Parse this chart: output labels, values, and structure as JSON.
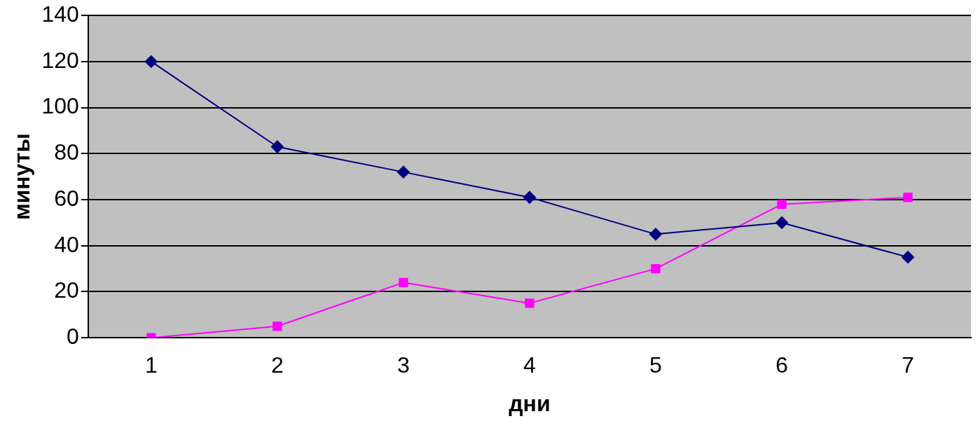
{
  "chart_data": {
    "type": "line",
    "xlabel": "дни",
    "ylabel": "минуты",
    "categories": [
      "1",
      "2",
      "3",
      "4",
      "5",
      "6",
      "7"
    ],
    "series": [
      {
        "color": "#000080",
        "marker": "diamond",
        "values": [
          120,
          83,
          72,
          61,
          45,
          50,
          35
        ]
      },
      {
        "color": "#ff00ff",
        "marker": "square",
        "values": [
          0,
          5,
          24,
          15,
          30,
          58,
          61
        ]
      }
    ],
    "ylim": [
      0,
      140
    ],
    "yticks": [
      0,
      20,
      40,
      60,
      80,
      100,
      120,
      140
    ],
    "grid": "y",
    "legend": false,
    "line_style": "solid"
  }
}
